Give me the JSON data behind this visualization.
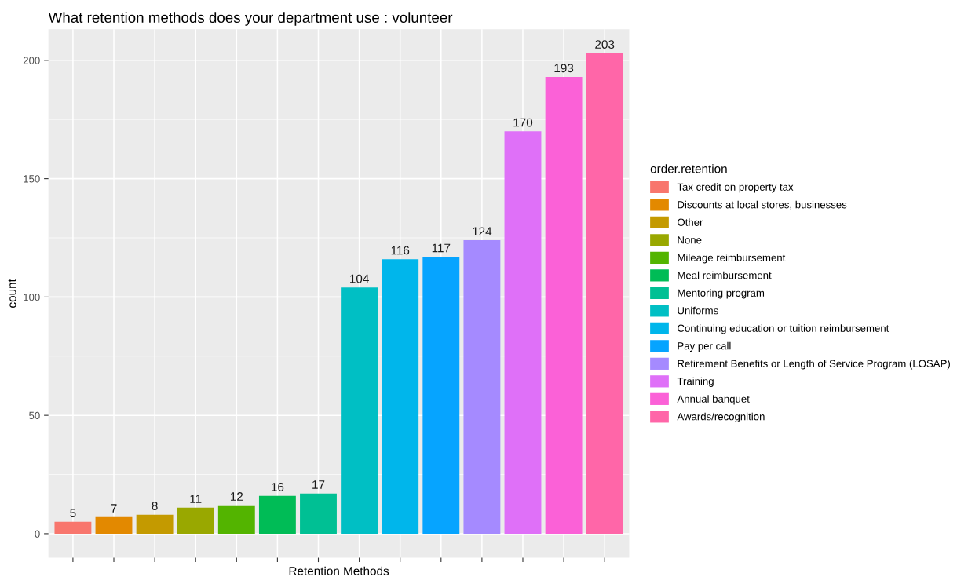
{
  "chart_data": {
    "type": "bar",
    "title": "What retention methods does your department use : volunteer",
    "xlabel": "Retention Methods",
    "ylabel": "count",
    "legend_title": "order.retention",
    "categories": [
      null,
      null,
      null,
      null,
      null,
      null,
      null,
      null,
      null,
      null,
      null,
      null,
      null,
      null
    ],
    "series": [
      {
        "name": "Tax credit on property tax",
        "color": "#F8766D",
        "values": [
          5,
          null,
          null,
          null,
          null,
          null,
          null,
          null,
          null,
          null,
          null,
          null,
          null,
          null
        ]
      },
      {
        "name": "Discounts at local stores, businesses",
        "color": "#E38900",
        "values": [
          null,
          7,
          null,
          null,
          null,
          null,
          null,
          null,
          null,
          null,
          null,
          null,
          null,
          null
        ]
      },
      {
        "name": "Other",
        "color": "#C49A00",
        "values": [
          null,
          null,
          8,
          null,
          null,
          null,
          null,
          null,
          null,
          null,
          null,
          null,
          null,
          null
        ]
      },
      {
        "name": "None",
        "color": "#99A800",
        "values": [
          null,
          null,
          null,
          11,
          null,
          null,
          null,
          null,
          null,
          null,
          null,
          null,
          null,
          null
        ]
      },
      {
        "name": "Mileage reimbursement",
        "color": "#53B400",
        "values": [
          null,
          null,
          null,
          null,
          12,
          null,
          null,
          null,
          null,
          null,
          null,
          null,
          null,
          null
        ]
      },
      {
        "name": "Meal reimbursement",
        "color": "#00BC56",
        "values": [
          null,
          null,
          null,
          null,
          null,
          16,
          null,
          null,
          null,
          null,
          null,
          null,
          null,
          null
        ]
      },
      {
        "name": "Mentoring program",
        "color": "#00C094",
        "values": [
          null,
          null,
          null,
          null,
          null,
          null,
          17,
          null,
          null,
          null,
          null,
          null,
          null,
          null
        ]
      },
      {
        "name": "Uniforms",
        "color": "#00BFC4",
        "values": [
          null,
          null,
          null,
          null,
          null,
          null,
          null,
          104,
          null,
          null,
          null,
          null,
          null,
          null
        ]
      },
      {
        "name": "Continuing education or tuition reimbursement",
        "color": "#00B6EB",
        "values": [
          null,
          null,
          null,
          null,
          null,
          null,
          null,
          null,
          116,
          null,
          null,
          null,
          null,
          null
        ]
      },
      {
        "name": "Pay per call",
        "color": "#06A4FF",
        "values": [
          null,
          null,
          null,
          null,
          null,
          null,
          null,
          null,
          null,
          117,
          null,
          null,
          null,
          null
        ]
      },
      {
        "name": "Retirement Benefits or Length of Service Program (LOSAP)",
        "color": "#A58AFF",
        "values": [
          null,
          null,
          null,
          null,
          null,
          null,
          null,
          null,
          null,
          null,
          124,
          null,
          null,
          null
        ]
      },
      {
        "name": "Training",
        "color": "#DF70F8",
        "values": [
          null,
          null,
          null,
          null,
          null,
          null,
          null,
          null,
          null,
          null,
          null,
          170,
          null,
          null
        ]
      },
      {
        "name": "Annual banquet",
        "color": "#FB61D7",
        "values": [
          null,
          null,
          null,
          null,
          null,
          null,
          null,
          null,
          null,
          null,
          null,
          null,
          193,
          null
        ]
      },
      {
        "name": "Awards/recognition",
        "color": "#FF66A8",
        "values": [
          null,
          null,
          null,
          null,
          null,
          null,
          null,
          null,
          null,
          null,
          null,
          null,
          null,
          203
        ]
      }
    ],
    "ylim": [
      -10.15,
      213.15
    ],
    "yticks": [
      0,
      50,
      100,
      150,
      200
    ],
    "grid": true,
    "legend": "right",
    "data_labels": true,
    "tick_labels": "y"
  }
}
